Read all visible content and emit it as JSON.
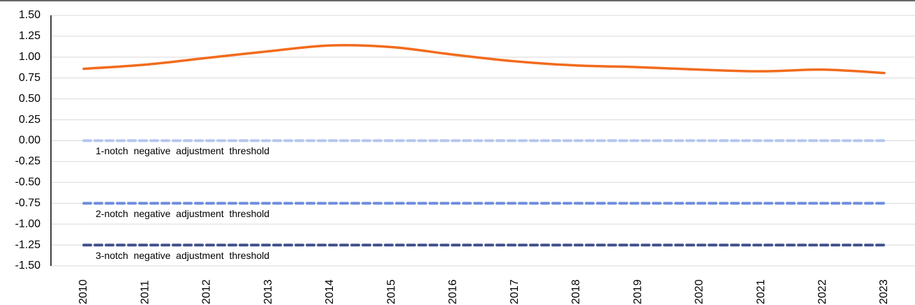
{
  "chart_data": {
    "type": "line",
    "categories": [
      "2010",
      "2011",
      "2012",
      "2013",
      "2014",
      "2015",
      "2016",
      "2017",
      "2018",
      "2019",
      "2020",
      "2021",
      "2022",
      "2023"
    ],
    "ylim": [
      -1.5,
      1.5
    ],
    "yticks": [
      {
        "value": 1.5,
        "label": "1.50"
      },
      {
        "value": 1.25,
        "label": "1.25"
      },
      {
        "value": 1,
        "label": "1.00"
      },
      {
        "value": 0.75,
        "label": "0.75"
      },
      {
        "value": 0.5,
        "label": "0.50"
      },
      {
        "value": 0.25,
        "label": "0.25"
      },
      {
        "value": 0,
        "label": "0.00"
      },
      {
        "value": -0.25,
        "label": "-0.25"
      },
      {
        "value": -0.5,
        "label": "-0.50"
      },
      {
        "value": -0.75,
        "label": "-0.75"
      },
      {
        "value": -1,
        "label": "-1.00"
      },
      {
        "value": -1.25,
        "label": "-1.25"
      },
      {
        "value": -1.5,
        "label": "-1.50"
      }
    ],
    "grid": true,
    "series": [
      {
        "values": [
          0.86,
          0.91,
          0.99,
          1.07,
          1.14,
          1.12,
          1.03,
          0.95,
          0.9,
          0.88,
          0.85,
          0.83,
          0.85,
          0.81
        ],
        "color": "#f26b1d",
        "style": "solid"
      },
      {
        "name": "1-notch  negative  adjustment  threshold",
        "values": [
          0,
          0,
          0,
          0,
          0,
          0,
          0,
          0,
          0,
          0,
          0,
          0,
          0,
          0
        ],
        "color": "#b4c6ef",
        "style": "dashed"
      },
      {
        "name": "2-notch  negative  adjustment  threshold",
        "values": [
          -0.75,
          -0.75,
          -0.75,
          -0.75,
          -0.75,
          -0.75,
          -0.75,
          -0.75,
          -0.75,
          -0.75,
          -0.75,
          -0.75,
          -0.75,
          -0.75
        ],
        "color": "#6e8ddf",
        "style": "dashed"
      },
      {
        "name": "3-notch  negative  adjustment  threshold",
        "values": [
          -1.25,
          -1.25,
          -1.25,
          -1.25,
          -1.25,
          -1.25,
          -1.25,
          -1.25,
          -1.25,
          -1.25,
          -1.25,
          -1.25,
          -1.25,
          -1.25
        ],
        "color": "#44538e",
        "style": "dashed"
      }
    ]
  }
}
